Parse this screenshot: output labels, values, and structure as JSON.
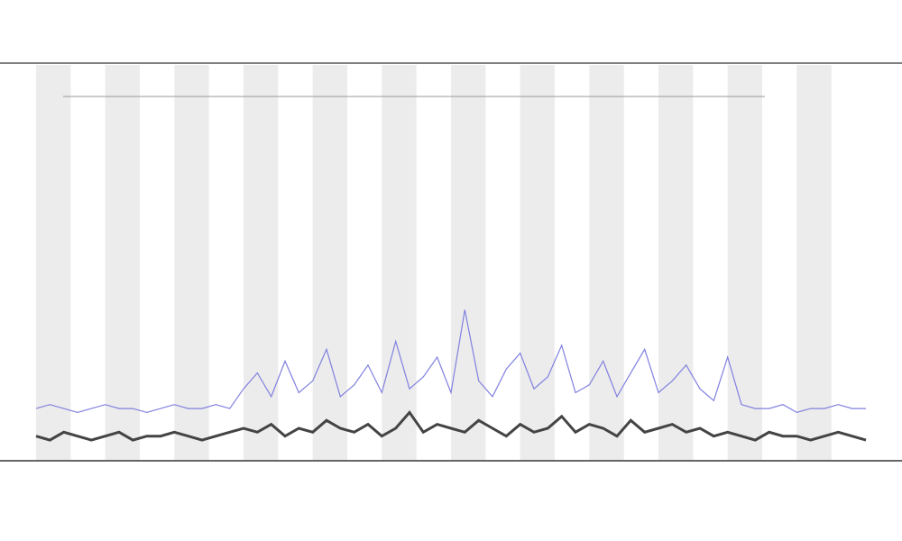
{
  "chart_data": {
    "type": "line",
    "xlim": [
      0,
      240
    ],
    "ylim": [
      0,
      100
    ],
    "x": [
      0,
      4,
      8,
      12,
      16,
      20,
      24,
      28,
      32,
      36,
      40,
      44,
      48,
      52,
      56,
      60,
      64,
      68,
      72,
      76,
      80,
      84,
      88,
      92,
      96,
      100,
      104,
      108,
      112,
      116,
      120,
      124,
      128,
      132,
      136,
      140,
      144,
      148,
      152,
      156,
      160,
      164,
      168,
      172,
      176,
      180,
      184,
      188,
      192,
      196,
      200,
      204,
      208,
      212,
      216,
      220,
      224,
      228,
      232,
      236,
      240
    ],
    "bands": [
      [
        0,
        10
      ],
      [
        20,
        30
      ],
      [
        40,
        50
      ],
      [
        60,
        70
      ],
      [
        80,
        90
      ],
      [
        100,
        110
      ],
      [
        120,
        130
      ],
      [
        140,
        150
      ],
      [
        160,
        170
      ],
      [
        180,
        190
      ],
      [
        200,
        210
      ],
      [
        220,
        230
      ]
    ],
    "band_color": "#ececec",
    "series": [
      {
        "color": "#8080e0",
        "values": [
          13,
          14,
          13,
          12,
          13,
          14,
          13,
          13,
          12,
          13,
          14,
          13,
          13,
          14,
          13,
          18,
          22,
          16,
          25,
          17,
          20,
          28,
          16,
          19,
          24,
          17,
          30,
          18,
          21,
          26,
          17,
          38,
          20,
          16,
          23,
          27,
          18,
          21,
          29,
          17,
          19,
          25,
          16,
          22,
          28,
          17,
          20,
          24,
          18,
          15,
          26,
          14,
          13,
          13,
          14,
          12,
          13,
          13,
          14,
          13,
          13
        ]
      },
      {
        "color": "#444444",
        "values": [
          6,
          5,
          7,
          6,
          5,
          6,
          7,
          5,
          6,
          6,
          7,
          6,
          5,
          6,
          7,
          8,
          7,
          9,
          6,
          8,
          7,
          10,
          8,
          7,
          9,
          6,
          8,
          12,
          7,
          9,
          8,
          7,
          10,
          8,
          6,
          9,
          7,
          8,
          11,
          7,
          9,
          8,
          6,
          10,
          7,
          8,
          9,
          7,
          8,
          6,
          7,
          6,
          5,
          7,
          6,
          6,
          5,
          6,
          7,
          6,
          5
        ]
      }
    ]
  }
}
